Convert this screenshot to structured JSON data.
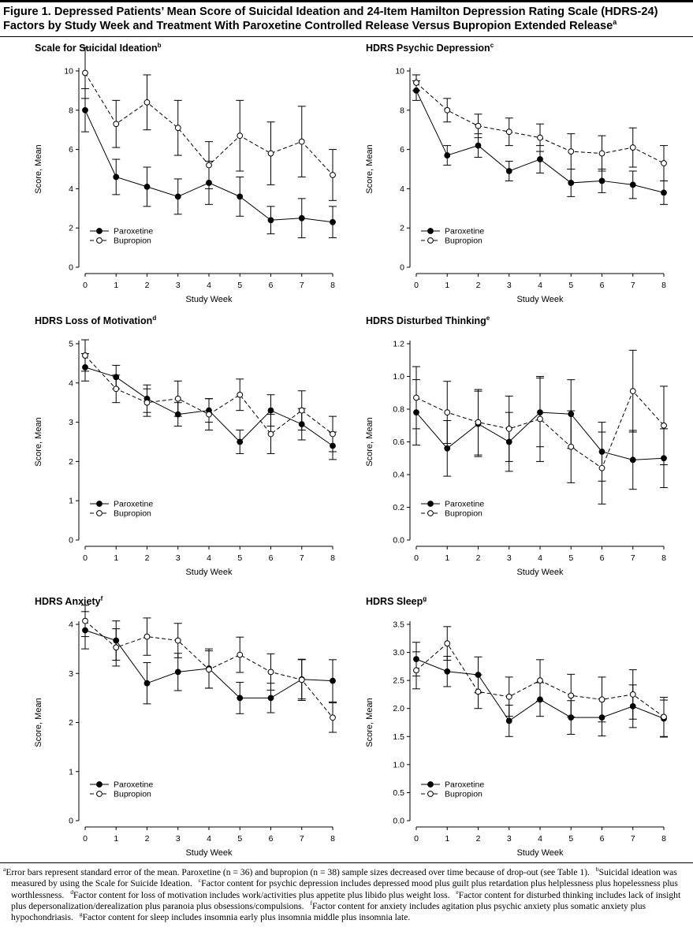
{
  "figure": {
    "title": "Figure 1. Depressed Patients’ Mean Score of Suicidal Ideation and 24-Item Hamilton Depression Rating Scale (HDRS-24) Factors by Study Week and Treatment With Paroxetine Controlled Release Versus Bupropion Extended Release",
    "title_marker": "a"
  },
  "footnotes": [
    {
      "marker": "a",
      "text": "Error bars represent standard error of the mean. Paroxetine (n = 36) and bupropion (n = 38) sample sizes decreased over time because of drop-out (see Table 1)."
    },
    {
      "marker": "b",
      "text": "Suicidal ideation was measured by using the Scale for Suicide Ideation."
    },
    {
      "marker": "c",
      "text": "Factor content for psychic depression includes depressed mood plus guilt plus retardation plus helplessness plus hopelessness plus worthlessness."
    },
    {
      "marker": "d",
      "text": "Factor content for loss of motivation includes work/activities plus appetite plus libido plus weight loss."
    },
    {
      "marker": "e",
      "text": "Factor content for disturbed thinking includes lack of insight plus depersonalization/derealization plus paranoia plus obsessions/compulsions."
    },
    {
      "marker": "f",
      "text": "Factor content for anxiety includes agitation plus psychic anxiety plus somatic anxiety plus hypochondriasis."
    },
    {
      "marker": "g",
      "text": "Factor content for sleep includes insomnia early plus insomnia middle plus insomnia late."
    }
  ],
  "chart_data": [
    {
      "type": "line",
      "title": "Scale for Suicidal Ideation",
      "title_marker": "b",
      "xlabel": "Study Week",
      "ylabel": "Score, Mean",
      "x": [
        0,
        1,
        2,
        3,
        4,
        5,
        6,
        7,
        8
      ],
      "xlim": [
        0,
        8
      ],
      "ylim": [
        0,
        10
      ],
      "yticks": [
        0,
        2,
        4,
        6,
        8,
        10
      ],
      "tick_decimals": 0,
      "legend": "bottom-left",
      "series": [
        {
          "name": "Paroxetine",
          "marker": "filled-circle",
          "line": "solid",
          "values": [
            8.0,
            4.6,
            4.1,
            3.6,
            4.3,
            3.6,
            2.4,
            2.5,
            2.3
          ],
          "error": [
            1.1,
            0.9,
            1.0,
            0.9,
            1.1,
            1.0,
            0.7,
            1.0,
            0.8
          ]
        },
        {
          "name": "Bupropion",
          "marker": "open-circle",
          "line": "dashed",
          "values": [
            9.9,
            7.3,
            8.4,
            7.1,
            5.2,
            6.7,
            5.8,
            6.4,
            4.7
          ],
          "error": [
            1.3,
            1.2,
            1.4,
            1.4,
            1.2,
            1.8,
            1.6,
            1.8,
            1.3
          ]
        }
      ]
    },
    {
      "type": "line",
      "title": "HDRS Psychic Depression",
      "title_marker": "c",
      "xlabel": "Study Week",
      "ylabel": "Score, Mean",
      "x": [
        0,
        1,
        2,
        3,
        4,
        5,
        6,
        7,
        8
      ],
      "xlim": [
        0,
        8
      ],
      "ylim": [
        0,
        10
      ],
      "yticks": [
        0,
        2,
        4,
        6,
        8,
        10
      ],
      "tick_decimals": 0,
      "legend": "bottom-left",
      "series": [
        {
          "name": "Paroxetine",
          "marker": "filled-circle",
          "line": "solid",
          "values": [
            9.0,
            5.7,
            6.2,
            4.9,
            5.5,
            4.3,
            4.4,
            4.2,
            3.8
          ],
          "error": [
            0.5,
            0.5,
            0.6,
            0.5,
            0.7,
            0.7,
            0.6,
            0.7,
            0.6
          ]
        },
        {
          "name": "Bupropion",
          "marker": "open-circle",
          "line": "dashed",
          "values": [
            9.4,
            8.0,
            7.2,
            6.9,
            6.6,
            5.9,
            5.8,
            6.1,
            5.3
          ],
          "error": [
            0.4,
            0.6,
            0.6,
            0.7,
            0.7,
            0.9,
            0.9,
            1.0,
            0.9
          ]
        }
      ]
    },
    {
      "type": "line",
      "title": "HDRS Loss of Motivation",
      "title_marker": "d",
      "xlabel": "Study Week",
      "ylabel": "Score, Mean",
      "x": [
        0,
        1,
        2,
        3,
        4,
        5,
        6,
        7,
        8
      ],
      "xlim": [
        0,
        8
      ],
      "ylim": [
        0,
        5
      ],
      "yticks": [
        0,
        1,
        2,
        3,
        4,
        5
      ],
      "tick_decimals": 0,
      "legend": "bottom-left",
      "series": [
        {
          "name": "Paroxetine",
          "marker": "filled-circle",
          "line": "solid",
          "values": [
            4.4,
            4.15,
            3.6,
            3.2,
            3.3,
            2.5,
            3.3,
            2.95,
            2.4
          ],
          "error": [
            0.35,
            0.3,
            0.35,
            0.3,
            0.3,
            0.3,
            0.4,
            0.4,
            0.35
          ]
        },
        {
          "name": "Bupropion",
          "marker": "open-circle",
          "line": "dashed",
          "values": [
            4.7,
            3.85,
            3.5,
            3.6,
            3.2,
            3.7,
            2.7,
            3.3,
            2.7
          ],
          "error": [
            0.4,
            0.35,
            0.35,
            0.45,
            0.4,
            0.4,
            0.5,
            0.5,
            0.45
          ]
        }
      ]
    },
    {
      "type": "line",
      "title": "HDRS Disturbed Thinking",
      "title_marker": "e",
      "xlabel": "Study Week",
      "ylabel": "Score, Mean",
      "x": [
        0,
        1,
        2,
        3,
        4,
        5,
        6,
        7,
        8
      ],
      "xlim": [
        0,
        8
      ],
      "ylim": [
        0,
        1.2
      ],
      "yticks": [
        0,
        0.2,
        0.4,
        0.6,
        0.8,
        1.0,
        1.2
      ],
      "tick_decimals": 1,
      "legend": "bottom-left",
      "series": [
        {
          "name": "Paroxetine",
          "marker": "filled-circle",
          "line": "solid",
          "values": [
            0.78,
            0.56,
            0.71,
            0.6,
            0.78,
            0.77,
            0.54,
            0.49,
            0.5
          ],
          "error": [
            0.2,
            0.17,
            0.2,
            0.18,
            0.21,
            0.21,
            0.18,
            0.18,
            0.18
          ]
        },
        {
          "name": "Bupropion",
          "marker": "open-circle",
          "line": "dashed",
          "values": [
            0.87,
            0.78,
            0.72,
            0.68,
            0.74,
            0.57,
            0.44,
            0.91,
            0.7
          ],
          "error": [
            0.19,
            0.19,
            0.2,
            0.2,
            0.26,
            0.22,
            0.22,
            0.25,
            0.24
          ]
        }
      ]
    },
    {
      "type": "line",
      "title": "HDRS Anxiety",
      "title_marker": "f",
      "xlabel": "Study Week",
      "ylabel": "Score, Mean",
      "x": [
        0,
        1,
        2,
        3,
        4,
        5,
        6,
        7,
        8
      ],
      "xlim": [
        0,
        8
      ],
      "ylim": [
        0,
        4
      ],
      "yticks": [
        0,
        1,
        2,
        3,
        4
      ],
      "tick_decimals": 0,
      "legend": "bottom-left",
      "series": [
        {
          "name": "Paroxetine",
          "marker": "filled-circle",
          "line": "solid",
          "values": [
            3.88,
            3.67,
            2.8,
            3.03,
            3.1,
            2.5,
            2.5,
            2.88,
            2.85
          ],
          "error": [
            0.38,
            0.4,
            0.42,
            0.38,
            0.4,
            0.32,
            0.3,
            0.4,
            0.43
          ]
        },
        {
          "name": "Bupropion",
          "marker": "open-circle",
          "line": "dashed",
          "values": [
            4.07,
            3.53,
            3.75,
            3.67,
            3.08,
            3.38,
            3.03,
            2.87,
            2.1
          ],
          "error": [
            0.32,
            0.38,
            0.38,
            0.35,
            0.38,
            0.36,
            0.37,
            0.42,
            0.3
          ]
        }
      ]
    },
    {
      "type": "line",
      "title": "HDRS Sleep",
      "title_marker": "g",
      "xlabel": "Study Week",
      "ylabel": "Score, Mean",
      "x": [
        0,
        1,
        2,
        3,
        4,
        5,
        6,
        7,
        8
      ],
      "xlim": [
        0,
        8
      ],
      "ylim": [
        0,
        3.5
      ],
      "yticks": [
        0,
        0.5,
        1.0,
        1.5,
        2.0,
        2.5,
        3.0,
        3.5
      ],
      "tick_decimals": 1,
      "legend": "bottom-left",
      "series": [
        {
          "name": "Paroxetine",
          "marker": "filled-circle",
          "line": "solid",
          "values": [
            2.88,
            2.66,
            2.6,
            1.78,
            2.16,
            1.84,
            1.84,
            2.04,
            1.82
          ],
          "error": [
            0.3,
            0.27,
            0.32,
            0.28,
            0.3,
            0.3,
            0.33,
            0.38,
            0.33
          ]
        },
        {
          "name": "Bupropion",
          "marker": "open-circle",
          "line": "dashed",
          "values": [
            2.68,
            3.16,
            2.3,
            2.21,
            2.5,
            2.23,
            2.16,
            2.25,
            1.85
          ],
          "error": [
            0.33,
            0.3,
            0.3,
            0.35,
            0.37,
            0.38,
            0.4,
            0.44,
            0.35
          ]
        }
      ]
    }
  ]
}
